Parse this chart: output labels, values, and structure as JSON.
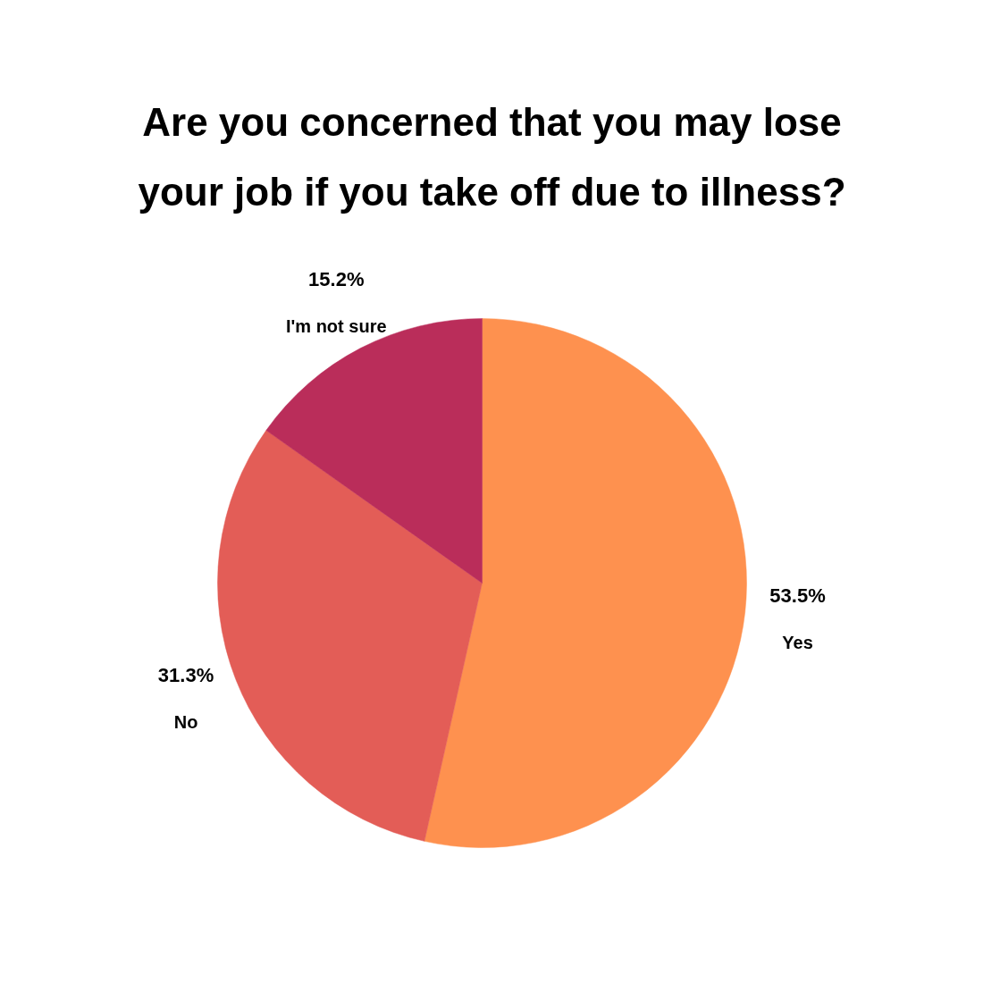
{
  "chart_data": {
    "type": "pie",
    "title": "Are you concerned that you may lose\nyour job if you take off due to illness?",
    "categories": [
      "Yes",
      "No",
      "I'm not sure"
    ],
    "values": [
      53.5,
      31.3,
      15.2
    ],
    "colors": [
      "#fe914f",
      "#e35d57",
      "#ba2d5a"
    ],
    "value_labels": [
      "53.5%",
      "31.3%",
      "15.2%"
    ]
  }
}
